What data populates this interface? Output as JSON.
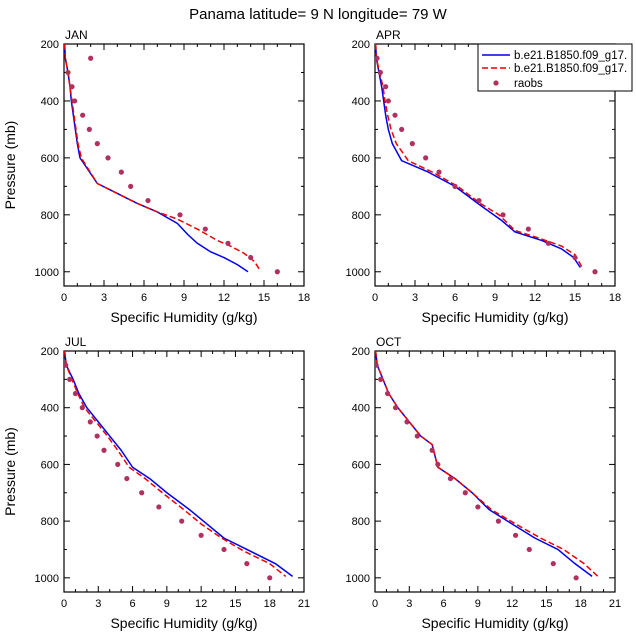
{
  "title": "Panama  latitude= 9 N longitude= 79 W",
  "legend": [
    "b.e21.B1850.f09_g17.",
    "b.e21.B1850.f09_g17.",
    "raobs"
  ],
  "colors": {
    "model1": "#0000ee",
    "model2": "#ee0000",
    "raobs": "#b03060"
  },
  "chart_data": [
    {
      "type": "line",
      "panel_label": "JAN",
      "xlabel": "Specific Humidity (g/kg)",
      "ylabel": "Pressure (mb)",
      "xlim": [
        0,
        18
      ],
      "xticks": [
        0,
        3,
        6,
        9,
        12,
        15,
        18
      ],
      "ylim": [
        200,
        1050
      ],
      "yticks": [
        200,
        400,
        600,
        800,
        1000
      ],
      "series": [
        {
          "name": "b.e21.B1850.f09_g17.",
          "style": "solid",
          "points": [
            [
              0.05,
              200
            ],
            [
              0.1,
              250
            ],
            [
              0.3,
              300
            ],
            [
              0.45,
              350
            ],
            [
              0.55,
              400
            ],
            [
              0.7,
              450
            ],
            [
              0.85,
              500
            ],
            [
              1.0,
              550
            ],
            [
              1.2,
              600
            ],
            [
              2.5,
              690
            ],
            [
              4.0,
              725
            ],
            [
              5.5,
              760
            ],
            [
              7.0,
              790
            ],
            [
              8.5,
              830
            ],
            [
              9.3,
              870
            ],
            [
              10.0,
              900
            ],
            [
              11.0,
              930
            ],
            [
              12.0,
              950
            ],
            [
              13.0,
              975
            ],
            [
              13.8,
              1000
            ]
          ]
        },
        {
          "name": "b.e21.B1850.f09_g17.",
          "style": "dashed",
          "points": [
            [
              0.05,
              200
            ],
            [
              0.1,
              250
            ],
            [
              0.3,
              300
            ],
            [
              0.45,
              350
            ],
            [
              0.6,
              400
            ],
            [
              0.75,
              450
            ],
            [
              0.9,
              500
            ],
            [
              1.05,
              550
            ],
            [
              1.3,
              600
            ],
            [
              2.5,
              690
            ],
            [
              4.0,
              725
            ],
            [
              5.5,
              760
            ],
            [
              7.0,
              790
            ],
            [
              8.5,
              815
            ],
            [
              10.0,
              850
            ],
            [
              11.5,
              890
            ],
            [
              12.5,
              910
            ],
            [
              13.5,
              935
            ],
            [
              14.3,
              965
            ],
            [
              14.7,
              995
            ]
          ]
        },
        {
          "name": "raobs",
          "style": "dots",
          "points": [
            [
              2.0,
              250
            ],
            [
              0.3,
              300
            ],
            [
              0.6,
              350
            ],
            [
              0.8,
              400
            ],
            [
              1.4,
              450
            ],
            [
              1.9,
              500
            ],
            [
              2.5,
              550
            ],
            [
              3.3,
              600
            ],
            [
              4.3,
              650
            ],
            [
              5.0,
              700
            ],
            [
              6.3,
              750
            ],
            [
              8.7,
              800
            ],
            [
              10.6,
              850
            ],
            [
              12.3,
              900
            ],
            [
              14.0,
              950
            ],
            [
              16.0,
              1000
            ]
          ]
        }
      ]
    },
    {
      "type": "line",
      "panel_label": "APR",
      "xlabel": "Specific Humidity (g/kg)",
      "ylabel": "",
      "xlim": [
        0,
        18
      ],
      "xticks": [
        0,
        3,
        6,
        9,
        12,
        15,
        18
      ],
      "ylim": [
        200,
        1050
      ],
      "yticks": [
        200,
        400,
        600,
        800,
        1000
      ],
      "series": [
        {
          "name": "b.e21.B1850.f09_g17.",
          "style": "solid",
          "points": [
            [
              0.05,
              200
            ],
            [
              0.1,
              250
            ],
            [
              0.3,
              300
            ],
            [
              0.5,
              350
            ],
            [
              0.65,
              400
            ],
            [
              0.8,
              450
            ],
            [
              1.0,
              500
            ],
            [
              1.3,
              550
            ],
            [
              2.0,
              610
            ],
            [
              4.0,
              650
            ],
            [
              6.0,
              700
            ],
            [
              8.0,
              770
            ],
            [
              9.5,
              820
            ],
            [
              10.5,
              860
            ],
            [
              12.5,
              890
            ],
            [
              14.0,
              920
            ],
            [
              14.9,
              950
            ],
            [
              15.4,
              985
            ]
          ]
        },
        {
          "name": "b.e21.B1850.f09_g17.",
          "style": "dashed",
          "points": [
            [
              0.05,
              200
            ],
            [
              0.1,
              250
            ],
            [
              0.35,
              300
            ],
            [
              0.6,
              350
            ],
            [
              0.75,
              400
            ],
            [
              0.95,
              450
            ],
            [
              1.2,
              500
            ],
            [
              1.6,
              550
            ],
            [
              2.5,
              610
            ],
            [
              4.3,
              650
            ],
            [
              6.2,
              700
            ],
            [
              7.9,
              760
            ],
            [
              9.3,
              800
            ],
            [
              10.5,
              855
            ],
            [
              12.5,
              885
            ],
            [
              14.0,
              910
            ],
            [
              15.0,
              940
            ],
            [
              15.6,
              990
            ]
          ]
        },
        {
          "name": "raobs",
          "style": "dots",
          "points": [
            [
              0.15,
              250
            ],
            [
              0.4,
              300
            ],
            [
              0.8,
              350
            ],
            [
              1.0,
              400
            ],
            [
              1.5,
              450
            ],
            [
              2.0,
              500
            ],
            [
              2.8,
              550
            ],
            [
              3.8,
              600
            ],
            [
              4.8,
              650
            ],
            [
              6.0,
              700
            ],
            [
              7.8,
              750
            ],
            [
              9.6,
              800
            ],
            [
              11.5,
              850
            ],
            [
              13.0,
              900
            ],
            [
              15.0,
              950
            ],
            [
              16.5,
              1000
            ]
          ]
        }
      ]
    },
    {
      "type": "line",
      "panel_label": "JUL",
      "xlabel": "Specific Humidity (g/kg)",
      "ylabel": "Pressure (mb)",
      "xlim": [
        0,
        21
      ],
      "xticks": [
        0,
        3,
        6,
        9,
        12,
        15,
        18,
        21
      ],
      "ylim": [
        200,
        1050
      ],
      "yticks": [
        200,
        400,
        600,
        800,
        1000
      ],
      "series": [
        {
          "name": "b.e21.B1850.f09_g17.",
          "style": "solid",
          "points": [
            [
              0.05,
              200
            ],
            [
              0.2,
              250
            ],
            [
              0.8,
              300
            ],
            [
              1.3,
              350
            ],
            [
              2.0,
              400
            ],
            [
              3.0,
              450
            ],
            [
              4.0,
              500
            ],
            [
              5.0,
              550
            ],
            [
              6.0,
              610
            ],
            [
              7.5,
              650
            ],
            [
              9.0,
              700
            ],
            [
              11.0,
              760
            ],
            [
              12.5,
              810
            ],
            [
              14.0,
              860
            ],
            [
              16.0,
              900
            ],
            [
              18.5,
              950
            ],
            [
              20.0,
              995
            ]
          ]
        },
        {
          "name": "b.e21.B1850.f09_g17.",
          "style": "dashed",
          "points": [
            [
              0.05,
              200
            ],
            [
              0.2,
              250
            ],
            [
              0.7,
              300
            ],
            [
              1.2,
              350
            ],
            [
              1.8,
              400
            ],
            [
              2.8,
              450
            ],
            [
              3.8,
              500
            ],
            [
              4.7,
              550
            ],
            [
              5.7,
              610
            ],
            [
              7.1,
              650
            ],
            [
              8.6,
              700
            ],
            [
              10.5,
              760
            ],
            [
              12.0,
              810
            ],
            [
              13.8,
              860
            ],
            [
              15.7,
              905
            ],
            [
              18.0,
              950
            ],
            [
              19.4,
              995
            ]
          ]
        },
        {
          "name": "raobs",
          "style": "dots",
          "points": [
            [
              0.15,
              250
            ],
            [
              0.5,
              300
            ],
            [
              1.0,
              350
            ],
            [
              1.6,
              400
            ],
            [
              2.3,
              450
            ],
            [
              2.9,
              500
            ],
            [
              3.5,
              550
            ],
            [
              4.7,
              600
            ],
            [
              5.5,
              650
            ],
            [
              6.8,
              700
            ],
            [
              8.3,
              750
            ],
            [
              10.3,
              800
            ],
            [
              12.0,
              850
            ],
            [
              14.0,
              900
            ],
            [
              16.0,
              950
            ],
            [
              18.0,
              1000
            ]
          ]
        }
      ]
    },
    {
      "type": "line",
      "panel_label": "OCT",
      "xlabel": "Specific Humidity (g/kg)",
      "ylabel": "",
      "xlim": [
        0,
        21
      ],
      "xticks": [
        0,
        3,
        6,
        9,
        12,
        15,
        18,
        21
      ],
      "ylim": [
        200,
        1050
      ],
      "yticks": [
        200,
        400,
        600,
        800,
        1000
      ],
      "series": [
        {
          "name": "b.e21.B1850.f09_g17.",
          "style": "solid",
          "points": [
            [
              0.05,
              200
            ],
            [
              0.2,
              250
            ],
            [
              0.7,
              300
            ],
            [
              1.2,
              350
            ],
            [
              2.0,
              400
            ],
            [
              3.0,
              450
            ],
            [
              4.0,
              500
            ],
            [
              5.0,
              530
            ],
            [
              5.5,
              610
            ],
            [
              7.0,
              650
            ],
            [
              8.5,
              700
            ],
            [
              10.0,
              760
            ],
            [
              12.0,
              810
            ],
            [
              14.0,
              860
            ],
            [
              16.0,
              900
            ],
            [
              17.5,
              950
            ],
            [
              19.0,
              995
            ]
          ]
        },
        {
          "name": "b.e21.B1850.f09_g17.",
          "style": "dashed",
          "points": [
            [
              0.05,
              200
            ],
            [
              0.2,
              250
            ],
            [
              0.7,
              300
            ],
            [
              1.2,
              350
            ],
            [
              2.0,
              400
            ],
            [
              3.0,
              450
            ],
            [
              4.0,
              500
            ],
            [
              5.0,
              530
            ],
            [
              5.5,
              610
            ],
            [
              7.0,
              650
            ],
            [
              8.5,
              700
            ],
            [
              10.2,
              760
            ],
            [
              12.3,
              810
            ],
            [
              14.5,
              860
            ],
            [
              16.5,
              900
            ],
            [
              18.3,
              950
            ],
            [
              19.5,
              995
            ]
          ]
        },
        {
          "name": "raobs",
          "style": "dots",
          "points": [
            [
              0.1,
              250
            ],
            [
              0.5,
              300
            ],
            [
              1.1,
              350
            ],
            [
              1.8,
              400
            ],
            [
              2.8,
              450
            ],
            [
              3.7,
              500
            ],
            [
              5.0,
              550
            ],
            [
              5.5,
              600
            ],
            [
              6.6,
              650
            ],
            [
              7.9,
              700
            ],
            [
              9.0,
              750
            ],
            [
              10.8,
              800
            ],
            [
              12.3,
              850
            ],
            [
              13.5,
              900
            ],
            [
              15.6,
              950
            ],
            [
              17.6,
              1000
            ]
          ]
        }
      ]
    }
  ]
}
